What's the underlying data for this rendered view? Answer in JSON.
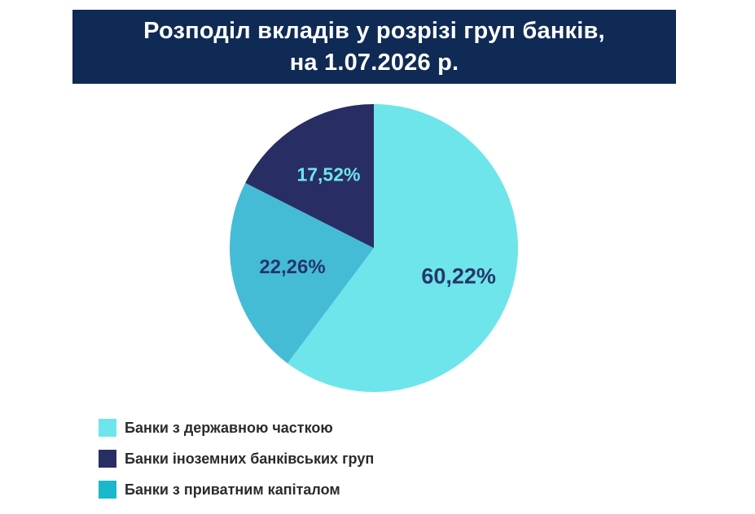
{
  "header": {
    "title_line1": "Розподіл вкладів у розрізі груп банків,",
    "title_line2": "на 1.07.2026 р."
  },
  "chart_data": {
    "type": "pie",
    "title": "Розподіл вкладів у розрізі груп банків, на 1.07.2026 р.",
    "slices": [
      {
        "name": "Банки з державною часткою",
        "value": 60.22,
        "label": "60,22%",
        "color": "#6ee5ea",
        "label_color": "#25366b"
      },
      {
        "name": "Банки з приватним капіталом",
        "value": 22.26,
        "label": "22,26%",
        "color": "#45bcd6",
        "label_color": "#25366b"
      },
      {
        "name": "Банки іноземних банківських груп",
        "value": 17.52,
        "label": "17,52%",
        "color": "#282e63",
        "label_color": "#6ee5ea"
      }
    ],
    "legend_placement": "bottom-left"
  },
  "legend": {
    "items": [
      {
        "label": "Банки з державною часткою",
        "color": "#6ee5ea"
      },
      {
        "label": "Банки іноземних банківських груп",
        "color": "#282e63"
      },
      {
        "label": "Банки з приватним капіталом",
        "color": "#1ab8cc"
      }
    ]
  }
}
